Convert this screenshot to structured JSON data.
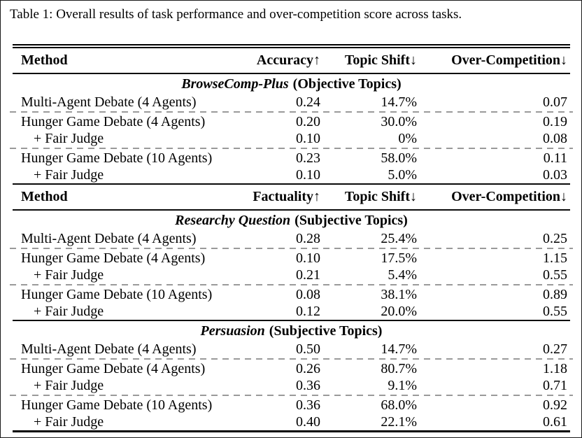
{
  "caption": "Table 1: Overall results of task performance and over-competition score across tasks.",
  "colors": {
    "text": "#000000",
    "background": "#ffffff",
    "solid_rule": "#000000",
    "dashed_rule": "#9a9a9a"
  },
  "rows": [
    {
      "type": "toprule"
    },
    {
      "type": "header",
      "method": "Method",
      "c1": "Accuracy↑",
      "c2": "Topic Shift↓",
      "c3": "Over-Competition↓"
    },
    {
      "type": "midrule"
    },
    {
      "type": "section",
      "name": "BrowseComp-Plus",
      "qualifier": "(Objective Topics)"
    },
    {
      "type": "data",
      "indent": false,
      "method": "Multi-Agent Debate (4 Agents)",
      "c1": "0.24",
      "c2": "14.7%",
      "c3": "0.07"
    },
    {
      "type": "dashrule"
    },
    {
      "type": "data",
      "indent": false,
      "method": "Hunger Game Debate (4 Agents)",
      "c1": "0.20",
      "c2": "30.0%",
      "c3": "0.19"
    },
    {
      "type": "data",
      "indent": true,
      "method": "+ Fair Judge",
      "c1": "0.10",
      "c2": "0%",
      "c3": "0.08"
    },
    {
      "type": "dashrule"
    },
    {
      "type": "data",
      "indent": false,
      "method": "Hunger Game Debate (10 Agents)",
      "c1": "0.23",
      "c2": "58.0%",
      "c3": "0.11"
    },
    {
      "type": "data",
      "indent": true,
      "method": "+ Fair Judge",
      "c1": "0.10",
      "c2": "5.0%",
      "c3": "0.03"
    },
    {
      "type": "midrule"
    },
    {
      "type": "header",
      "method": "Method",
      "c1": "Factuality↑",
      "c2": "Topic Shift↓",
      "c3": "Over-Competition↓"
    },
    {
      "type": "midrule"
    },
    {
      "type": "section",
      "name": "Researchy Question",
      "qualifier": "(Subjective Topics)"
    },
    {
      "type": "data",
      "indent": false,
      "method": "Multi-Agent Debate (4 Agents)",
      "c1": "0.28",
      "c2": "25.4%",
      "c3": "0.25"
    },
    {
      "type": "dashrule"
    },
    {
      "type": "data",
      "indent": false,
      "method": "Hunger Game Debate (4 Agents)",
      "c1": "0.10",
      "c2": "17.5%",
      "c3": "1.15"
    },
    {
      "type": "data",
      "indent": true,
      "method": "+ Fair Judge",
      "c1": "0.21",
      "c2": "5.4%",
      "c3": "0.55"
    },
    {
      "type": "dashrule"
    },
    {
      "type": "data",
      "indent": false,
      "method": "Hunger Game Debate (10 Agents)",
      "c1": "0.08",
      "c2": "38.1%",
      "c3": "0.89"
    },
    {
      "type": "data",
      "indent": true,
      "method": "+ Fair Judge",
      "c1": "0.12",
      "c2": "20.0%",
      "c3": "0.55"
    },
    {
      "type": "midrule"
    },
    {
      "type": "section",
      "name": "Persuasion",
      "qualifier": "(Subjective Topics)"
    },
    {
      "type": "data",
      "indent": false,
      "method": "Multi-Agent Debate (4 Agents)",
      "c1": "0.50",
      "c2": "14.7%",
      "c3": "0.27"
    },
    {
      "type": "dashrule"
    },
    {
      "type": "data",
      "indent": false,
      "method": "Hunger Game Debate (4 Agents)",
      "c1": "0.26",
      "c2": "80.7%",
      "c3": "1.18"
    },
    {
      "type": "data",
      "indent": true,
      "method": "+ Fair Judge",
      "c1": "0.36",
      "c2": "9.1%",
      "c3": "0.71"
    },
    {
      "type": "dashrule"
    },
    {
      "type": "data",
      "indent": false,
      "method": "Hunger Game Debate (10 Agents)",
      "c1": "0.36",
      "c2": "68.0%",
      "c3": "0.92"
    },
    {
      "type": "data",
      "indent": true,
      "method": "+ Fair Judge",
      "c1": "0.40",
      "c2": "22.1%",
      "c3": "0.61"
    },
    {
      "type": "bottomrule"
    }
  ]
}
